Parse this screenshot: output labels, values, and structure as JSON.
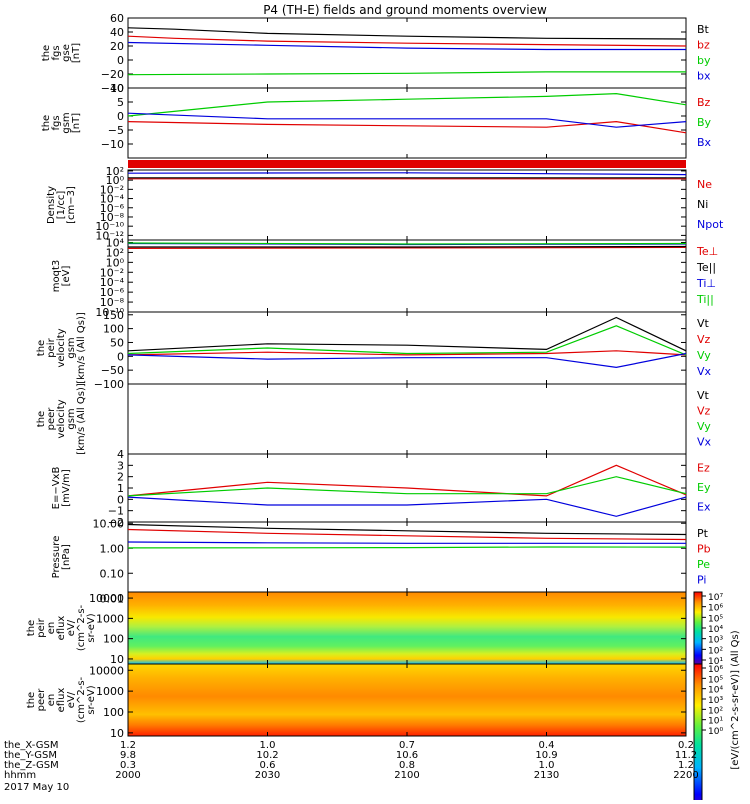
{
  "title": "P4 (TH-E) fields and ground moments overview",
  "colors": {
    "black": "#000000",
    "red": "#e00000",
    "green": "#00cc00",
    "blue": "#0000dd"
  },
  "panels": [
    {
      "id": "fgs-gse",
      "ylabel_lines": [
        "the",
        "fgs",
        "gse",
        "[nT]"
      ],
      "ymin": -40,
      "ymax": 60,
      "log": false,
      "ticks": [
        "60",
        "40",
        "20",
        "0",
        "−20",
        "−40"
      ],
      "tick_values": [
        60,
        40,
        20,
        0,
        -20,
        -40
      ],
      "legend": [
        {
          "text": "Bt",
          "color": "#000000"
        },
        {
          "text": "bz",
          "color": "#e00000"
        },
        {
          "text": "by",
          "color": "#00cc00"
        },
        {
          "text": "bx",
          "color": "#0000dd"
        }
      ]
    },
    {
      "id": "fgs-gsm",
      "ylabel_lines": [
        "the",
        "fgs",
        "gsm",
        "[nT]"
      ],
      "ymin": -15,
      "ymax": 10,
      "log": false,
      "ticks": [
        "10",
        "5",
        "0",
        "−5",
        "−10"
      ],
      "tick_values": [
        10,
        5,
        0,
        -5,
        -10
      ],
      "legend": [
        {
          "text": "Bz",
          "color": "#e00000"
        },
        {
          "text": "By",
          "color": "#00cc00"
        },
        {
          "text": "Bx",
          "color": "#0000dd"
        }
      ]
    },
    {
      "id": "density",
      "ylabel_lines": [
        "Density",
        "[1/cc]",
        "[cm−3]"
      ],
      "ymin": -13,
      "ymax": 2.2,
      "log": true,
      "ticks": [
        "10²",
        "10⁰",
        "10⁻²",
        "10⁻⁴",
        "10⁻⁶",
        "10⁻⁸",
        "10⁻¹⁰",
        "10⁻¹²"
      ],
      "tick_values": [
        2,
        0,
        -2,
        -4,
        -6,
        -8,
        -10,
        -12
      ],
      "legend": [
        {
          "text": "Ne",
          "color": "#e00000"
        },
        {
          "text": "Ni",
          "color": "#000000"
        },
        {
          "text": "Npot",
          "color": "#0000dd"
        }
      ]
    },
    {
      "id": "temperature",
      "ylabel_lines": [
        "moqt3",
        "[eV]"
      ],
      "ymin": -10,
      "ymax": 4.5,
      "log": true,
      "ticks": [
        "10⁴",
        "10²",
        "10⁰",
        "10⁻²",
        "10⁻⁴",
        "10⁻⁶",
        "10⁻⁸",
        "10⁻¹⁰"
      ],
      "tick_values": [
        4,
        2,
        0,
        -2,
        -4,
        -6,
        -8,
        -10
      ],
      "legend": [
        {
          "text": "Te⊥",
          "color": "#e00000"
        },
        {
          "text": "Te||",
          "color": "#000000"
        },
        {
          "text": "Ti⊥",
          "color": "#0000dd"
        },
        {
          "text": "Ti||",
          "color": "#00cc00"
        }
      ]
    },
    {
      "id": "peir-velocity",
      "ylabel_lines": [
        "the",
        "peir",
        "velocity",
        "gsm",
        "[km/s (All Qs)]"
      ],
      "ymin": -100,
      "ymax": 160,
      "log": false,
      "ticks": [
        "150",
        "100",
        "50",
        "0",
        "−50",
        "−100"
      ],
      "tick_values": [
        150,
        100,
        50,
        0,
        -50,
        -100
      ],
      "legend": [
        {
          "text": "Vt",
          "color": "#000000"
        },
        {
          "text": "Vz",
          "color": "#e00000"
        },
        {
          "text": "Vy",
          "color": "#00cc00"
        },
        {
          "text": "Vx",
          "color": "#0000dd"
        }
      ]
    },
    {
      "id": "peer-velocity",
      "ylabel_lines": [
        "the",
        "peer",
        "velocity",
        "gsm",
        "[km/s (All Qs)]"
      ],
      "ymin": 0,
      "ymax": 1,
      "log": false,
      "ticks": [],
      "tick_values": [],
      "legend": [
        {
          "text": "Vt",
          "color": "#000000"
        },
        {
          "text": "Vz",
          "color": "#e00000"
        },
        {
          "text": "Vy",
          "color": "#00cc00"
        },
        {
          "text": "Vx",
          "color": "#0000dd"
        }
      ]
    },
    {
      "id": "efield",
      "ylabel_lines": [
        "E=−VxB",
        "[mV/m]"
      ],
      "ymin": -2,
      "ymax": 4,
      "log": false,
      "ticks": [
        "4",
        "3",
        "2",
        "1",
        "0",
        "−1",
        "−2"
      ],
      "tick_values": [
        4,
        3,
        2,
        1,
        0,
        -1,
        -2
      ],
      "legend": [
        {
          "text": "Ez",
          "color": "#e00000"
        },
        {
          "text": "Ey",
          "color": "#00cc00"
        },
        {
          "text": "Ex",
          "color": "#0000dd"
        }
      ]
    },
    {
      "id": "pressure",
      "ylabel_lines": [
        "Pressure",
        "[nPa]"
      ],
      "ymin": -1.75,
      "ymax": 1.05,
      "log": true,
      "ticks": [
        "10.00",
        "1.00",
        "0.10",
        "0.01"
      ],
      "tick_values": [
        1,
        0,
        -1,
        -2
      ],
      "legend": [
        {
          "text": "Pt",
          "color": "#000000"
        },
        {
          "text": "Pb",
          "color": "#e00000"
        },
        {
          "text": "Pe",
          "color": "#00cc00"
        },
        {
          "text": "Pi",
          "color": "#0000dd"
        }
      ]
    },
    {
      "id": "peir-spec",
      "ylabel_lines": [
        "the",
        "peir",
        "en",
        "eflux",
        "eV/",
        "(cm^2-s-",
        "sr-eV)"
      ],
      "ymin": 0.75,
      "ymax": 4.3,
      "log": true,
      "ticks": [
        "10000",
        "1000",
        "100",
        "10"
      ],
      "tick_values": [
        4,
        3,
        2,
        1
      ],
      "legend": []
    },
    {
      "id": "peer-spec",
      "ylabel_lines": [
        "the",
        "peer",
        "en",
        "eflux",
        "eV/",
        "(cm^2-s-",
        "sr-eV)"
      ],
      "ymin": 0.85,
      "ymax": 4.3,
      "log": true,
      "ticks": [
        "10000",
        "1000",
        "100",
        "10"
      ],
      "tick_values": [
        4,
        3,
        2,
        1
      ],
      "legend": []
    }
  ],
  "colorbar": {
    "label": "[eV/(cm^2-s-sr-eV)] (All Qs)",
    "ticks": [
      "10⁷",
      "10⁶",
      "10⁵",
      "10⁴",
      "10³",
      "10²",
      "10¹"
    ],
    "ticks2": [
      "10⁶",
      "10⁵",
      "10⁴",
      "10³",
      "10²",
      "10¹",
      "10⁰"
    ]
  },
  "xaxis": {
    "row_labels": [
      "the_X-GSM",
      "the_Y-GSM",
      "the_Z-GSM",
      "hhmm"
    ],
    "rows": [
      [
        "1.2",
        "1.0",
        "0.7",
        "0.4",
        "0.2"
      ],
      [
        "9.8",
        "10.2",
        "10.6",
        "10.9",
        "11.2"
      ],
      [
        "0.3",
        "0.6",
        "0.8",
        "1.0",
        "1.2"
      ],
      [
        "2000",
        "2030",
        "2100",
        "2130",
        "2200"
      ]
    ],
    "tick_minutes": [
      0,
      30,
      60,
      90,
      120
    ],
    "date": "2017 May 10"
  },
  "chart_data": {
    "type": "line",
    "title": "P4 (TH-E) fields and ground moments overview",
    "date": "2017 May 10",
    "x_unit": "hhmm",
    "x_range": [
      "2000",
      "2200"
    ],
    "series": [
      {
        "panel": "fgs-gse",
        "name": "Bt",
        "color": "#000000",
        "x": [
          "2000",
          "2010",
          "2030",
          "2100",
          "2130",
          "2200"
        ],
        "y": [
          46,
          44,
          38,
          34,
          31,
          30
        ]
      },
      {
        "panel": "fgs-gse",
        "name": "bz",
        "color": "#e00000",
        "x": [
          "2000",
          "2010",
          "2030",
          "2100",
          "2130",
          "2200"
        ],
        "y": [
          34,
          31,
          27,
          24,
          22,
          20
        ]
      },
      {
        "panel": "fgs-gse",
        "name": "by",
        "color": "#00cc00",
        "x": [
          "2000",
          "2030",
          "2100",
          "2130",
          "2200"
        ],
        "y": [
          -21,
          -20,
          -19,
          -17,
          -17
        ]
      },
      {
        "panel": "fgs-gse",
        "name": "bx",
        "color": "#0000dd",
        "x": [
          "2000",
          "2030",
          "2100",
          "2130",
          "2200"
        ],
        "y": [
          25,
          21,
          17,
          15,
          15
        ]
      },
      {
        "panel": "fgs-gsm",
        "name": "Bz",
        "color": "#e00000",
        "x": [
          "2000",
          "2030",
          "2100",
          "2130",
          "2145",
          "2200"
        ],
        "y": [
          -2,
          -3,
          -3.5,
          -4,
          -2,
          -6
        ]
      },
      {
        "panel": "fgs-gsm",
        "name": "By",
        "color": "#00cc00",
        "x": [
          "2000",
          "2030",
          "2100",
          "2130",
          "2145",
          "2200"
        ],
        "y": [
          0,
          5,
          6,
          7,
          8,
          4
        ]
      },
      {
        "panel": "fgs-gsm",
        "name": "Bx",
        "color": "#0000dd",
        "x": [
          "2000",
          "2030",
          "2100",
          "2130",
          "2145",
          "2200"
        ],
        "y": [
          1,
          -1,
          -1,
          -1,
          -4,
          -2
        ]
      },
      {
        "panel": "density",
        "name": "Ne",
        "color": "#e00000",
        "x": [
          "2000",
          "2100",
          "2200"
        ],
        "y": [
          0.3,
          0.3,
          0.3
        ]
      },
      {
        "panel": "density",
        "name": "Ni",
        "color": "#000000",
        "x": [
          "2000",
          "2100",
          "2200"
        ],
        "y": [
          0.5,
          0.5,
          0.5
        ]
      },
      {
        "panel": "density",
        "name": "Npot",
        "color": "#0000dd",
        "x": [
          "2000",
          "2100",
          "2200"
        ],
        "y": [
          1.5,
          1.6,
          1.2
        ]
      },
      {
        "panel": "temperature",
        "name": "Te⊥",
        "color": "#e00000",
        "x": [
          "2000",
          "2100",
          "2200"
        ],
        "y": [
          2.8,
          2.9,
          3.0
        ]
      },
      {
        "panel": "temperature",
        "name": "Te||",
        "color": "#000000",
        "x": [
          "2000",
          "2100",
          "2200"
        ],
        "y": [
          3.1,
          3.1,
          3.2
        ]
      },
      {
        "panel": "temperature",
        "name": "Ti⊥",
        "color": "#0000dd",
        "x": [
          "2000",
          "2100",
          "2200"
        ],
        "y": [
          3.8,
          3.6,
          3.7
        ]
      },
      {
        "panel": "temperature",
        "name": "Ti||",
        "color": "#00cc00",
        "x": [
          "2000",
          "2100",
          "2200"
        ],
        "y": [
          3.9,
          3.7,
          3.8
        ]
      },
      {
        "panel": "peir-velocity",
        "name": "Vt",
        "color": "#000000",
        "x": [
          "2000",
          "2030",
          "2100",
          "2130",
          "2145",
          "2200"
        ],
        "y": [
          20,
          45,
          40,
          25,
          140,
          20
        ]
      },
      {
        "panel": "peir-velocity",
        "name": "Vz",
        "color": "#e00000",
        "x": [
          "2000",
          "2030",
          "2100",
          "2130",
          "2145",
          "2200"
        ],
        "y": [
          5,
          15,
          5,
          10,
          20,
          5
        ]
      },
      {
        "panel": "peir-velocity",
        "name": "Vy",
        "color": "#00cc00",
        "x": [
          "2000",
          "2030",
          "2100",
          "2130",
          "2145",
          "2200"
        ],
        "y": [
          10,
          30,
          10,
          15,
          110,
          5
        ]
      },
      {
        "panel": "peir-velocity",
        "name": "Vx",
        "color": "#0000dd",
        "x": [
          "2000",
          "2030",
          "2100",
          "2130",
          "2145",
          "2200"
        ],
        "y": [
          5,
          -10,
          -5,
          -5,
          -40,
          10
        ]
      },
      {
        "panel": "efield",
        "name": "Ez",
        "color": "#e00000",
        "x": [
          "2000",
          "2030",
          "2100",
          "2130",
          "2145",
          "2200"
        ],
        "y": [
          0.3,
          1.5,
          1.0,
          0.3,
          3.0,
          0.4
        ]
      },
      {
        "panel": "efield",
        "name": "Ey",
        "color": "#00cc00",
        "x": [
          "2000",
          "2030",
          "2100",
          "2130",
          "2145",
          "2200"
        ],
        "y": [
          0.3,
          1.0,
          0.5,
          0.5,
          2.0,
          0.5
        ]
      },
      {
        "panel": "efield",
        "name": "Ex",
        "color": "#0000dd",
        "x": [
          "2000",
          "2030",
          "2100",
          "2130",
          "2145",
          "2200"
        ],
        "y": [
          0.2,
          -0.5,
          -0.5,
          0.0,
          -1.5,
          0.2
        ]
      },
      {
        "panel": "pressure",
        "name": "Pt",
        "color": "#000000",
        "x": [
          "2000",
          "2030",
          "2100",
          "2130",
          "2200"
        ],
        "y": [
          0.95,
          0.8,
          0.7,
          0.6,
          0.55
        ]
      },
      {
        "panel": "pressure",
        "name": "Pb",
        "color": "#e00000",
        "x": [
          "2000",
          "2030",
          "2100",
          "2130",
          "2200"
        ],
        "y": [
          0.75,
          0.6,
          0.5,
          0.4,
          0.35
        ]
      },
      {
        "panel": "pressure",
        "name": "Pe",
        "color": "#00cc00",
        "x": [
          "2000",
          "2030",
          "2100",
          "2130",
          "2200"
        ],
        "y": [
          0.015,
          0.018,
          0.025,
          0.05,
          0.045
        ]
      },
      {
        "panel": "pressure",
        "name": "Pi",
        "color": "#0000dd",
        "x": [
          "2000",
          "2030",
          "2100",
          "2130",
          "2200"
        ],
        "y": [
          0.25,
          0.22,
          0.2,
          0.2,
          0.2
        ]
      }
    ],
    "spectrograms": [
      {
        "panel": "peir-spec",
        "energy_range_eV": [
          7,
          20000
        ],
        "colorbar_log_range": [
          1,
          7
        ]
      },
      {
        "panel": "peer-spec",
        "energy_range_eV": [
          7,
          20000
        ],
        "colorbar_log_range": [
          0,
          6
        ]
      }
    ]
  }
}
